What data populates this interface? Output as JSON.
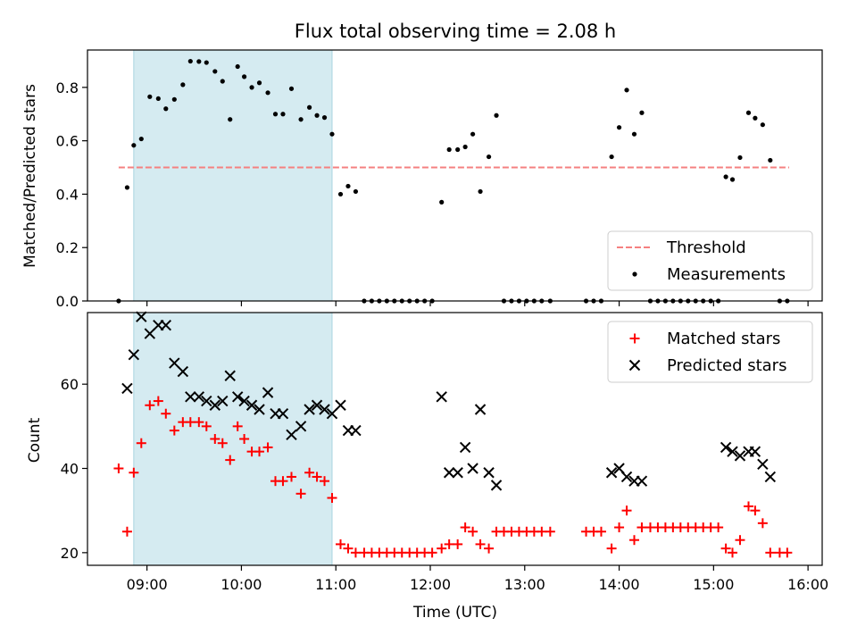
{
  "chart_data": [
    {
      "type": "scatter",
      "title": "Flux total observing time = 2.08 h",
      "xlabel": "",
      "ylabel": "Matched/Predicted stars",
      "xlim": [
        8.37,
        16.15
      ],
      "ylim": [
        0,
        0.94
      ],
      "yticks": [
        0.0,
        0.2,
        0.4,
        0.6,
        0.8
      ],
      "shaded_span": [
        8.86,
        10.96
      ],
      "shade_color": "#d5ebf1",
      "threshold": {
        "name": "Threshold",
        "y": 0.5,
        "x_range": [
          8.7,
          15.8
        ],
        "color": "#f58080"
      },
      "legend": {
        "position": "lower-right",
        "threshold_label": "Threshold",
        "measurements_label": "Measurements"
      },
      "series": [
        {
          "name": "Measurements",
          "color": "#000000",
          "points": [
            [
              8.7,
              0.0
            ],
            [
              8.79,
              0.425
            ],
            [
              8.86,
              0.583
            ],
            [
              8.94,
              0.607
            ],
            [
              9.03,
              0.765
            ],
            [
              9.12,
              0.758
            ],
            [
              9.2,
              0.72
            ],
            [
              9.29,
              0.755
            ],
            [
              9.38,
              0.81
            ],
            [
              9.46,
              0.898
            ],
            [
              9.55,
              0.897
            ],
            [
              9.63,
              0.893
            ],
            [
              9.72,
              0.86
            ],
            [
              9.8,
              0.823
            ],
            [
              9.88,
              0.68
            ],
            [
              9.96,
              0.878
            ],
            [
              10.03,
              0.84
            ],
            [
              10.11,
              0.8
            ],
            [
              10.19,
              0.817
            ],
            [
              10.28,
              0.78
            ],
            [
              10.36,
              0.7
            ],
            [
              10.44,
              0.7
            ],
            [
              10.53,
              0.795
            ],
            [
              10.63,
              0.68
            ],
            [
              10.72,
              0.725
            ],
            [
              10.8,
              0.695
            ],
            [
              10.88,
              0.687
            ],
            [
              10.96,
              0.625
            ],
            [
              11.05,
              0.4
            ],
            [
              11.13,
              0.43
            ],
            [
              11.21,
              0.41
            ],
            [
              11.3,
              0.0
            ],
            [
              11.38,
              0.0
            ],
            [
              11.46,
              0.0
            ],
            [
              11.54,
              0.0
            ],
            [
              11.62,
              0.0
            ],
            [
              11.7,
              0.0
            ],
            [
              11.78,
              0.0
            ],
            [
              11.86,
              0.0
            ],
            [
              11.94,
              0.0
            ],
            [
              12.02,
              0.0
            ],
            [
              12.12,
              0.37
            ],
            [
              12.2,
              0.567
            ],
            [
              12.29,
              0.567
            ],
            [
              12.37,
              0.577
            ],
            [
              12.45,
              0.625
            ],
            [
              12.53,
              0.41
            ],
            [
              12.62,
              0.54
            ],
            [
              12.7,
              0.695
            ],
            [
              12.78,
              0.0
            ],
            [
              12.86,
              0.0
            ],
            [
              12.94,
              0.0
            ],
            [
              13.02,
              0.0
            ],
            [
              13.1,
              0.0
            ],
            [
              13.18,
              0.0
            ],
            [
              13.27,
              0.0
            ],
            [
              13.65,
              0.0
            ],
            [
              13.73,
              0.0
            ],
            [
              13.81,
              0.0
            ],
            [
              13.92,
              0.54
            ],
            [
              14.0,
              0.65
            ],
            [
              14.08,
              0.79
            ],
            [
              14.16,
              0.625
            ],
            [
              14.24,
              0.705
            ],
            [
              14.33,
              0.0
            ],
            [
              14.41,
              0.0
            ],
            [
              14.49,
              0.0
            ],
            [
              14.57,
              0.0
            ],
            [
              14.65,
              0.0
            ],
            [
              14.73,
              0.0
            ],
            [
              14.81,
              0.0
            ],
            [
              14.89,
              0.0
            ],
            [
              14.97,
              0.0
            ],
            [
              15.05,
              0.0
            ],
            [
              15.13,
              0.465
            ],
            [
              15.2,
              0.455
            ],
            [
              15.28,
              0.537
            ],
            [
              15.37,
              0.705
            ],
            [
              15.44,
              0.685
            ],
            [
              15.52,
              0.66
            ],
            [
              15.6,
              0.527
            ],
            [
              15.7,
              0.0
            ],
            [
              15.78,
              0.0
            ]
          ]
        }
      ]
    },
    {
      "type": "scatter",
      "title": "",
      "xlabel": "Time (UTC)",
      "ylabel": "Count",
      "xlim": [
        8.37,
        16.15
      ],
      "ylim": [
        17,
        77
      ],
      "yticks": [
        20,
        40,
        60
      ],
      "xtick_values": [
        9,
        10,
        11,
        12,
        13,
        14,
        15,
        16
      ],
      "xtick_labels": [
        "09:00",
        "10:00",
        "11:00",
        "12:00",
        "13:00",
        "14:00",
        "15:00",
        "16:00"
      ],
      "shaded_span": [
        8.86,
        10.96
      ],
      "shade_color": "#d5ebf1",
      "legend": {
        "position": "upper-right"
      },
      "series": [
        {
          "name": "Matched stars",
          "marker": "plus",
          "color": "#ff0000",
          "points": [
            [
              8.7,
              40
            ],
            [
              8.79,
              25
            ],
            [
              8.86,
              39
            ],
            [
              8.94,
              46
            ],
            [
              9.03,
              55
            ],
            [
              9.12,
              56
            ],
            [
              9.2,
              53
            ],
            [
              9.29,
              49
            ],
            [
              9.38,
              51
            ],
            [
              9.46,
              51
            ],
            [
              9.55,
              51
            ],
            [
              9.63,
              50
            ],
            [
              9.72,
              47
            ],
            [
              9.8,
              46
            ],
            [
              9.88,
              42
            ],
            [
              9.96,
              50
            ],
            [
              10.03,
              47
            ],
            [
              10.11,
              44
            ],
            [
              10.19,
              44
            ],
            [
              10.28,
              45
            ],
            [
              10.36,
              37
            ],
            [
              10.44,
              37
            ],
            [
              10.53,
              38
            ],
            [
              10.63,
              34
            ],
            [
              10.72,
              39
            ],
            [
              10.8,
              38
            ],
            [
              10.88,
              37
            ],
            [
              10.96,
              33
            ],
            [
              11.05,
              22
            ],
            [
              11.13,
              21
            ],
            [
              11.21,
              20
            ],
            [
              11.3,
              20
            ],
            [
              11.38,
              20
            ],
            [
              11.46,
              20
            ],
            [
              11.54,
              20
            ],
            [
              11.62,
              20
            ],
            [
              11.7,
              20
            ],
            [
              11.78,
              20
            ],
            [
              11.86,
              20
            ],
            [
              11.94,
              20
            ],
            [
              12.02,
              20
            ],
            [
              12.12,
              21
            ],
            [
              12.2,
              22
            ],
            [
              12.29,
              22
            ],
            [
              12.37,
              26
            ],
            [
              12.45,
              25
            ],
            [
              12.53,
              22
            ],
            [
              12.62,
              21
            ],
            [
              12.7,
              25
            ],
            [
              12.78,
              25
            ],
            [
              12.86,
              25
            ],
            [
              12.94,
              25
            ],
            [
              13.02,
              25
            ],
            [
              13.1,
              25
            ],
            [
              13.18,
              25
            ],
            [
              13.27,
              25
            ],
            [
              13.65,
              25
            ],
            [
              13.73,
              25
            ],
            [
              13.81,
              25
            ],
            [
              13.92,
              21
            ],
            [
              14.0,
              26
            ],
            [
              14.08,
              30
            ],
            [
              14.16,
              23
            ],
            [
              14.24,
              26
            ],
            [
              14.33,
              26
            ],
            [
              14.41,
              26
            ],
            [
              14.49,
              26
            ],
            [
              14.57,
              26
            ],
            [
              14.65,
              26
            ],
            [
              14.73,
              26
            ],
            [
              14.81,
              26
            ],
            [
              14.89,
              26
            ],
            [
              14.97,
              26
            ],
            [
              15.05,
              26
            ],
            [
              15.13,
              21
            ],
            [
              15.2,
              20
            ],
            [
              15.28,
              23
            ],
            [
              15.37,
              31
            ],
            [
              15.44,
              30
            ],
            [
              15.52,
              27
            ],
            [
              15.6,
              20
            ],
            [
              15.7,
              20
            ],
            [
              15.78,
              20
            ]
          ]
        },
        {
          "name": "Predicted stars",
          "marker": "x",
          "color": "#000000",
          "points": [
            [
              8.79,
              59
            ],
            [
              8.86,
              67
            ],
            [
              8.94,
              76
            ],
            [
              9.03,
              72
            ],
            [
              9.12,
              74
            ],
            [
              9.2,
              74
            ],
            [
              9.29,
              65
            ],
            [
              9.38,
              63
            ],
            [
              9.46,
              57
            ],
            [
              9.55,
              57
            ],
            [
              9.63,
              56
            ],
            [
              9.72,
              55
            ],
            [
              9.8,
              56
            ],
            [
              9.88,
              62
            ],
            [
              9.96,
              57
            ],
            [
              10.03,
              56
            ],
            [
              10.11,
              55
            ],
            [
              10.19,
              54
            ],
            [
              10.28,
              58
            ],
            [
              10.36,
              53
            ],
            [
              10.44,
              53
            ],
            [
              10.53,
              48
            ],
            [
              10.63,
              50
            ],
            [
              10.72,
              54
            ],
            [
              10.8,
              55
            ],
            [
              10.88,
              54
            ],
            [
              10.96,
              53
            ],
            [
              11.05,
              55
            ],
            [
              11.13,
              49
            ],
            [
              11.21,
              49
            ],
            [
              12.12,
              57
            ],
            [
              12.2,
              39
            ],
            [
              12.29,
              39
            ],
            [
              12.37,
              45
            ],
            [
              12.45,
              40
            ],
            [
              12.53,
              54
            ],
            [
              12.62,
              39
            ],
            [
              12.7,
              36
            ],
            [
              13.92,
              39
            ],
            [
              14.0,
              40
            ],
            [
              14.08,
              38
            ],
            [
              14.16,
              37
            ],
            [
              14.24,
              37
            ],
            [
              15.13,
              45
            ],
            [
              15.2,
              44
            ],
            [
              15.28,
              43
            ],
            [
              15.37,
              44
            ],
            [
              15.44,
              44
            ],
            [
              15.52,
              41
            ],
            [
              15.6,
              38
            ]
          ]
        }
      ]
    }
  ]
}
